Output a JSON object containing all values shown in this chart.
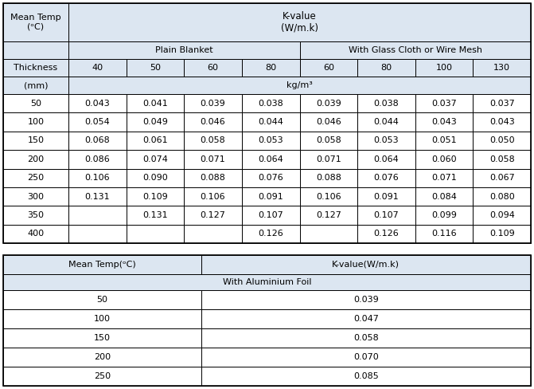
{
  "bg_color": "#dce6f1",
  "white": "#ffffff",
  "border_color": "#000000",
  "text_color": "#000000",
  "fig_w": 6.71,
  "fig_h": 4.88,
  "dpi": 100,
  "table1": {
    "data_rows": [
      [
        "50",
        "0.043",
        "0.041",
        "0.039",
        "0.038",
        "0.039",
        "0.038",
        "0.037",
        "0.037"
      ],
      [
        "100",
        "0.054",
        "0.049",
        "0.046",
        "0.044",
        "0.046",
        "0.044",
        "0.043",
        "0.043"
      ],
      [
        "150",
        "0.068",
        "0.061",
        "0.058",
        "0.053",
        "0.058",
        "0.053",
        "0.051",
        "0.050"
      ],
      [
        "200",
        "0.086",
        "0.074",
        "0.071",
        "0.064",
        "0.071",
        "0.064",
        "0.060",
        "0.058"
      ],
      [
        "250",
        "0.106",
        "0.090",
        "0.088",
        "0.076",
        "0.088",
        "0.076",
        "0.071",
        "0.067"
      ],
      [
        "300",
        "0.131",
        "0.109",
        "0.106",
        "0.091",
        "0.106",
        "0.091",
        "0.084",
        "0.080"
      ],
      [
        "350",
        "",
        "0.131",
        "0.127",
        "0.107",
        "0.127",
        "0.107",
        "0.099",
        "0.094"
      ],
      [
        "400",
        "",
        "",
        "",
        "0.126",
        "",
        "0.126",
        "0.116",
        "0.109"
      ]
    ],
    "thickness_labels": [
      "Thickness",
      "40",
      "50",
      "60",
      "80",
      "60",
      "80",
      "100",
      "130"
    ]
  },
  "table2": {
    "data_rows": [
      [
        "50",
        "0.039"
      ],
      [
        "100",
        "0.047"
      ],
      [
        "150",
        "0.058"
      ],
      [
        "200",
        "0.070"
      ],
      [
        "250",
        "0.085"
      ]
    ]
  },
  "font_size": 8.0,
  "superscript": "°"
}
